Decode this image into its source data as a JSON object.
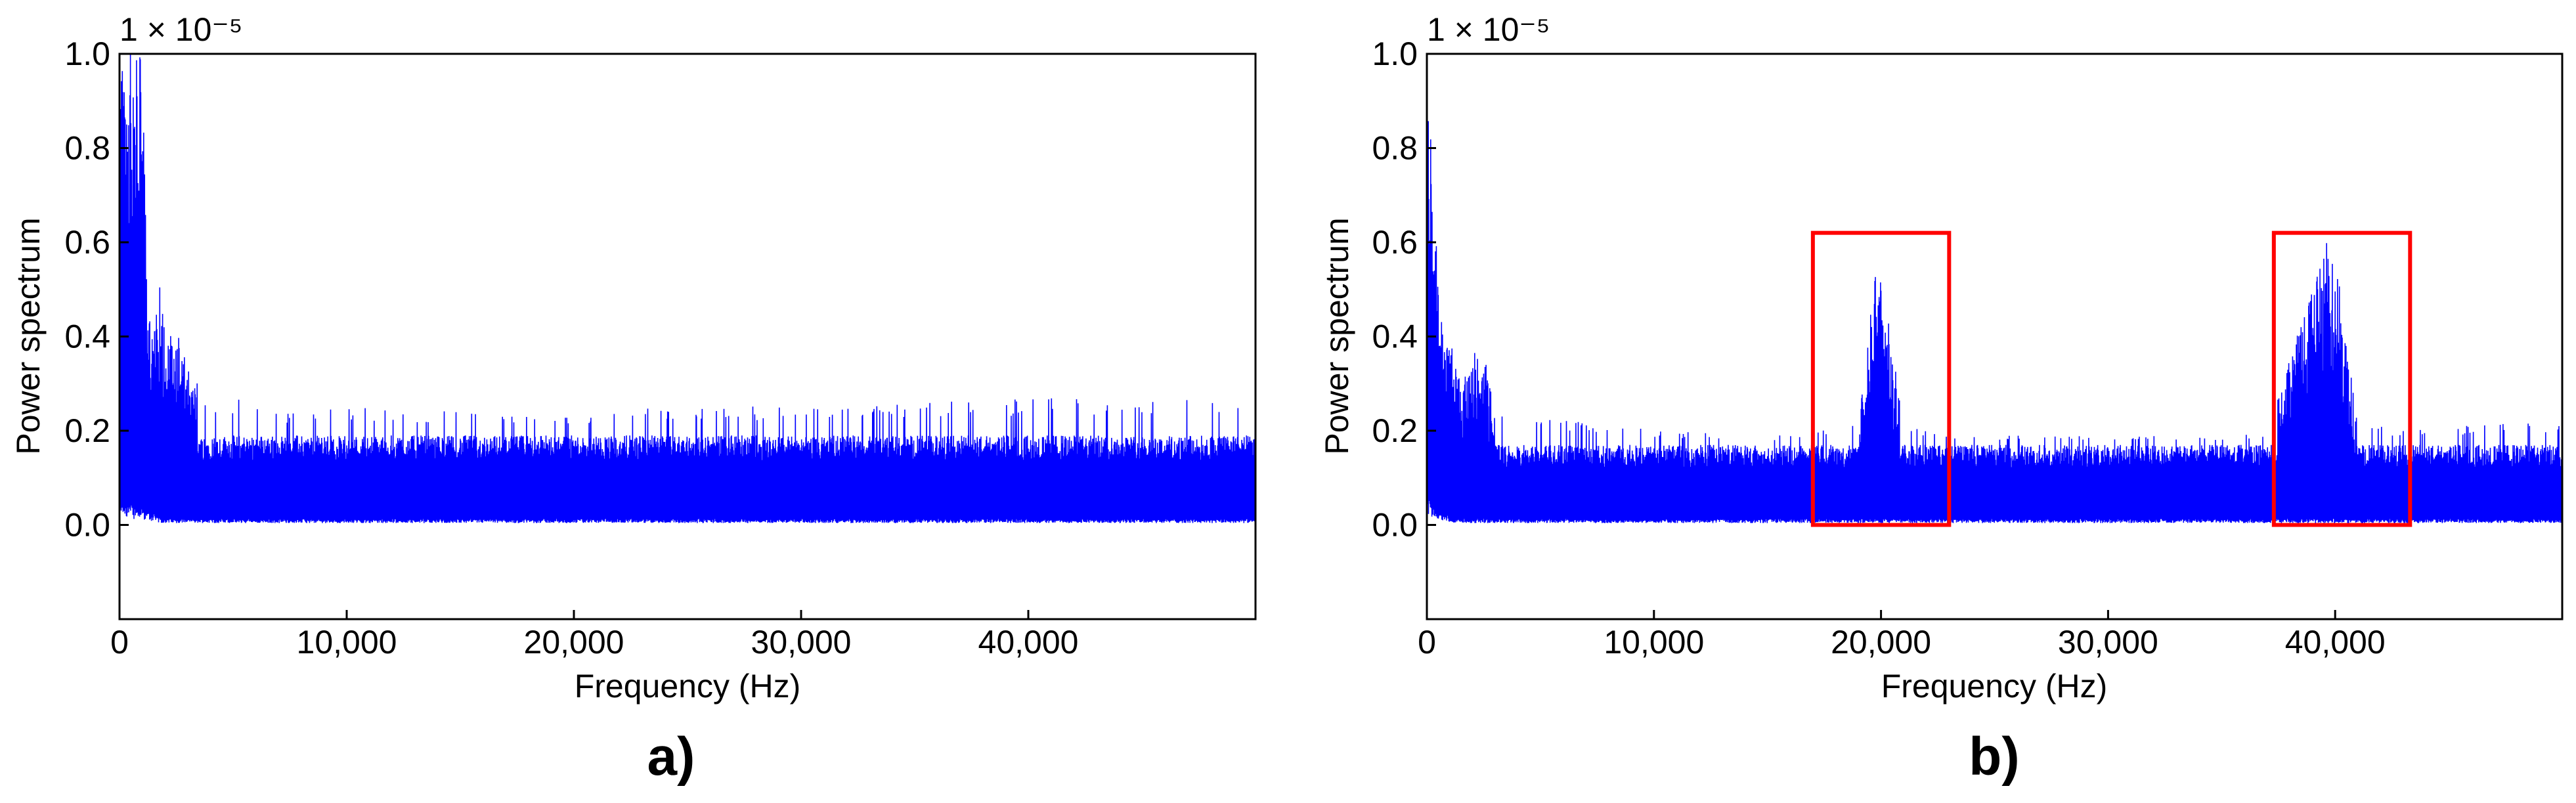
{
  "chart_data": [
    {
      "panel": "a)",
      "type": "line",
      "xlabel": "Frequency (Hz)",
      "ylabel": "Power spectrum",
      "y_scale_label": "1 × 10⁻⁵",
      "x_ticks": [
        0,
        10000,
        20000,
        30000,
        40000
      ],
      "x_tick_labels": [
        "0",
        "10,000",
        "20,000",
        "30,000",
        "40,000"
      ],
      "y_ticks": [
        0.0,
        0.2,
        0.4,
        0.6,
        0.8,
        1.0
      ],
      "y_tick_labels": [
        "0.0",
        "0.2",
        "0.4",
        "0.6",
        "0.8",
        "1.0"
      ],
      "xlim": [
        0,
        50000
      ],
      "ylim": [
        -0.2,
        1.0
      ],
      "grid": false,
      "series": [
        {
          "color": "#0000ff",
          "x": [
            0,
            200,
            400,
            600,
            800,
            1000,
            1200,
            1500,
            1800,
            2100,
            2500,
            3000,
            3500,
            4000,
            5000,
            7500,
            10000,
            15000,
            20000,
            25000,
            30000,
            35000,
            40000,
            45000,
            50000
          ],
          "upper": [
            1.0,
            1.0,
            1.0,
            1.0,
            1.0,
            1.0,
            0.55,
            0.4,
            0.52,
            0.4,
            0.42,
            0.33,
            0.3,
            0.29,
            0.28,
            0.24,
            0.25,
            0.24,
            0.23,
            0.26,
            0.25,
            0.26,
            0.27,
            0.27,
            0.26
          ],
          "lower": [
            0.05,
            0.05,
            0.04,
            0.03,
            0.04,
            0.03,
            0.02,
            0.02,
            0.01,
            0.01,
            0.01,
            0.01,
            0.01,
            0.01,
            0.01,
            0.01,
            0.01,
            0.01,
            0.01,
            0.01,
            0.01,
            0.01,
            0.01,
            0.01,
            0.01
          ],
          "typical_upper": 0.19
        }
      ],
      "annotations": []
    },
    {
      "panel": "b)",
      "type": "line",
      "xlabel": "Frequency (Hz)",
      "ylabel": "Power spectrum",
      "y_scale_label": "1 × 10⁻⁵",
      "x_ticks": [
        0,
        10000,
        20000,
        30000,
        40000
      ],
      "x_tick_labels": [
        "0",
        "10,000",
        "20,000",
        "30,000",
        "40,000"
      ],
      "y_ticks": [
        0.0,
        0.2,
        0.4,
        0.6,
        0.8,
        1.0
      ],
      "y_tick_labels": [
        "0.0",
        "0.2",
        "0.4",
        "0.6",
        "0.8",
        "1.0"
      ],
      "xlim": [
        0,
        50000
      ],
      "ylim": [
        -0.2,
        1.0
      ],
      "grid": false,
      "series": [
        {
          "color": "#0000ff",
          "x": [
            0,
            100,
            300,
            500,
            700,
            900,
            1100,
            1500,
            2000,
            2500,
            3000,
            4000,
            5000,
            7500,
            10000,
            15000,
            17000,
            19000,
            19800,
            20200,
            21000,
            23000,
            25000,
            30000,
            35000,
            37000,
            39700,
            40100,
            41000,
            43000,
            45000,
            50000
          ],
          "upper": [
            1.0,
            1.0,
            0.78,
            0.55,
            0.48,
            0.42,
            0.38,
            0.3,
            0.37,
            0.36,
            0.27,
            0.24,
            0.23,
            0.22,
            0.2,
            0.19,
            0.19,
            0.25,
            0.56,
            0.48,
            0.21,
            0.19,
            0.19,
            0.19,
            0.19,
            0.2,
            0.61,
            0.54,
            0.22,
            0.2,
            0.21,
            0.22
          ],
          "lower": [
            0.05,
            0.04,
            0.03,
            0.02,
            0.02,
            0.02,
            0.01,
            0.01,
            0.01,
            0.01,
            0.01,
            0.01,
            0.01,
            0.01,
            0.01,
            0.01,
            0.01,
            0.01,
            0.01,
            0.01,
            0.01,
            0.01,
            0.01,
            0.01,
            0.01,
            0.01,
            0.01,
            0.01,
            0.01,
            0.01,
            0.01,
            0.01
          ],
          "typical_upper": 0.17
        }
      ],
      "annotations": [
        {
          "type": "rect",
          "color": "#ff0000",
          "x0": 17000,
          "x1": 23000,
          "y0": 0.0,
          "y1": 0.62
        },
        {
          "type": "rect",
          "color": "#ff0000",
          "x0": 37300,
          "x1": 43300,
          "y0": 0.0,
          "y1": 0.62
        }
      ]
    }
  ]
}
